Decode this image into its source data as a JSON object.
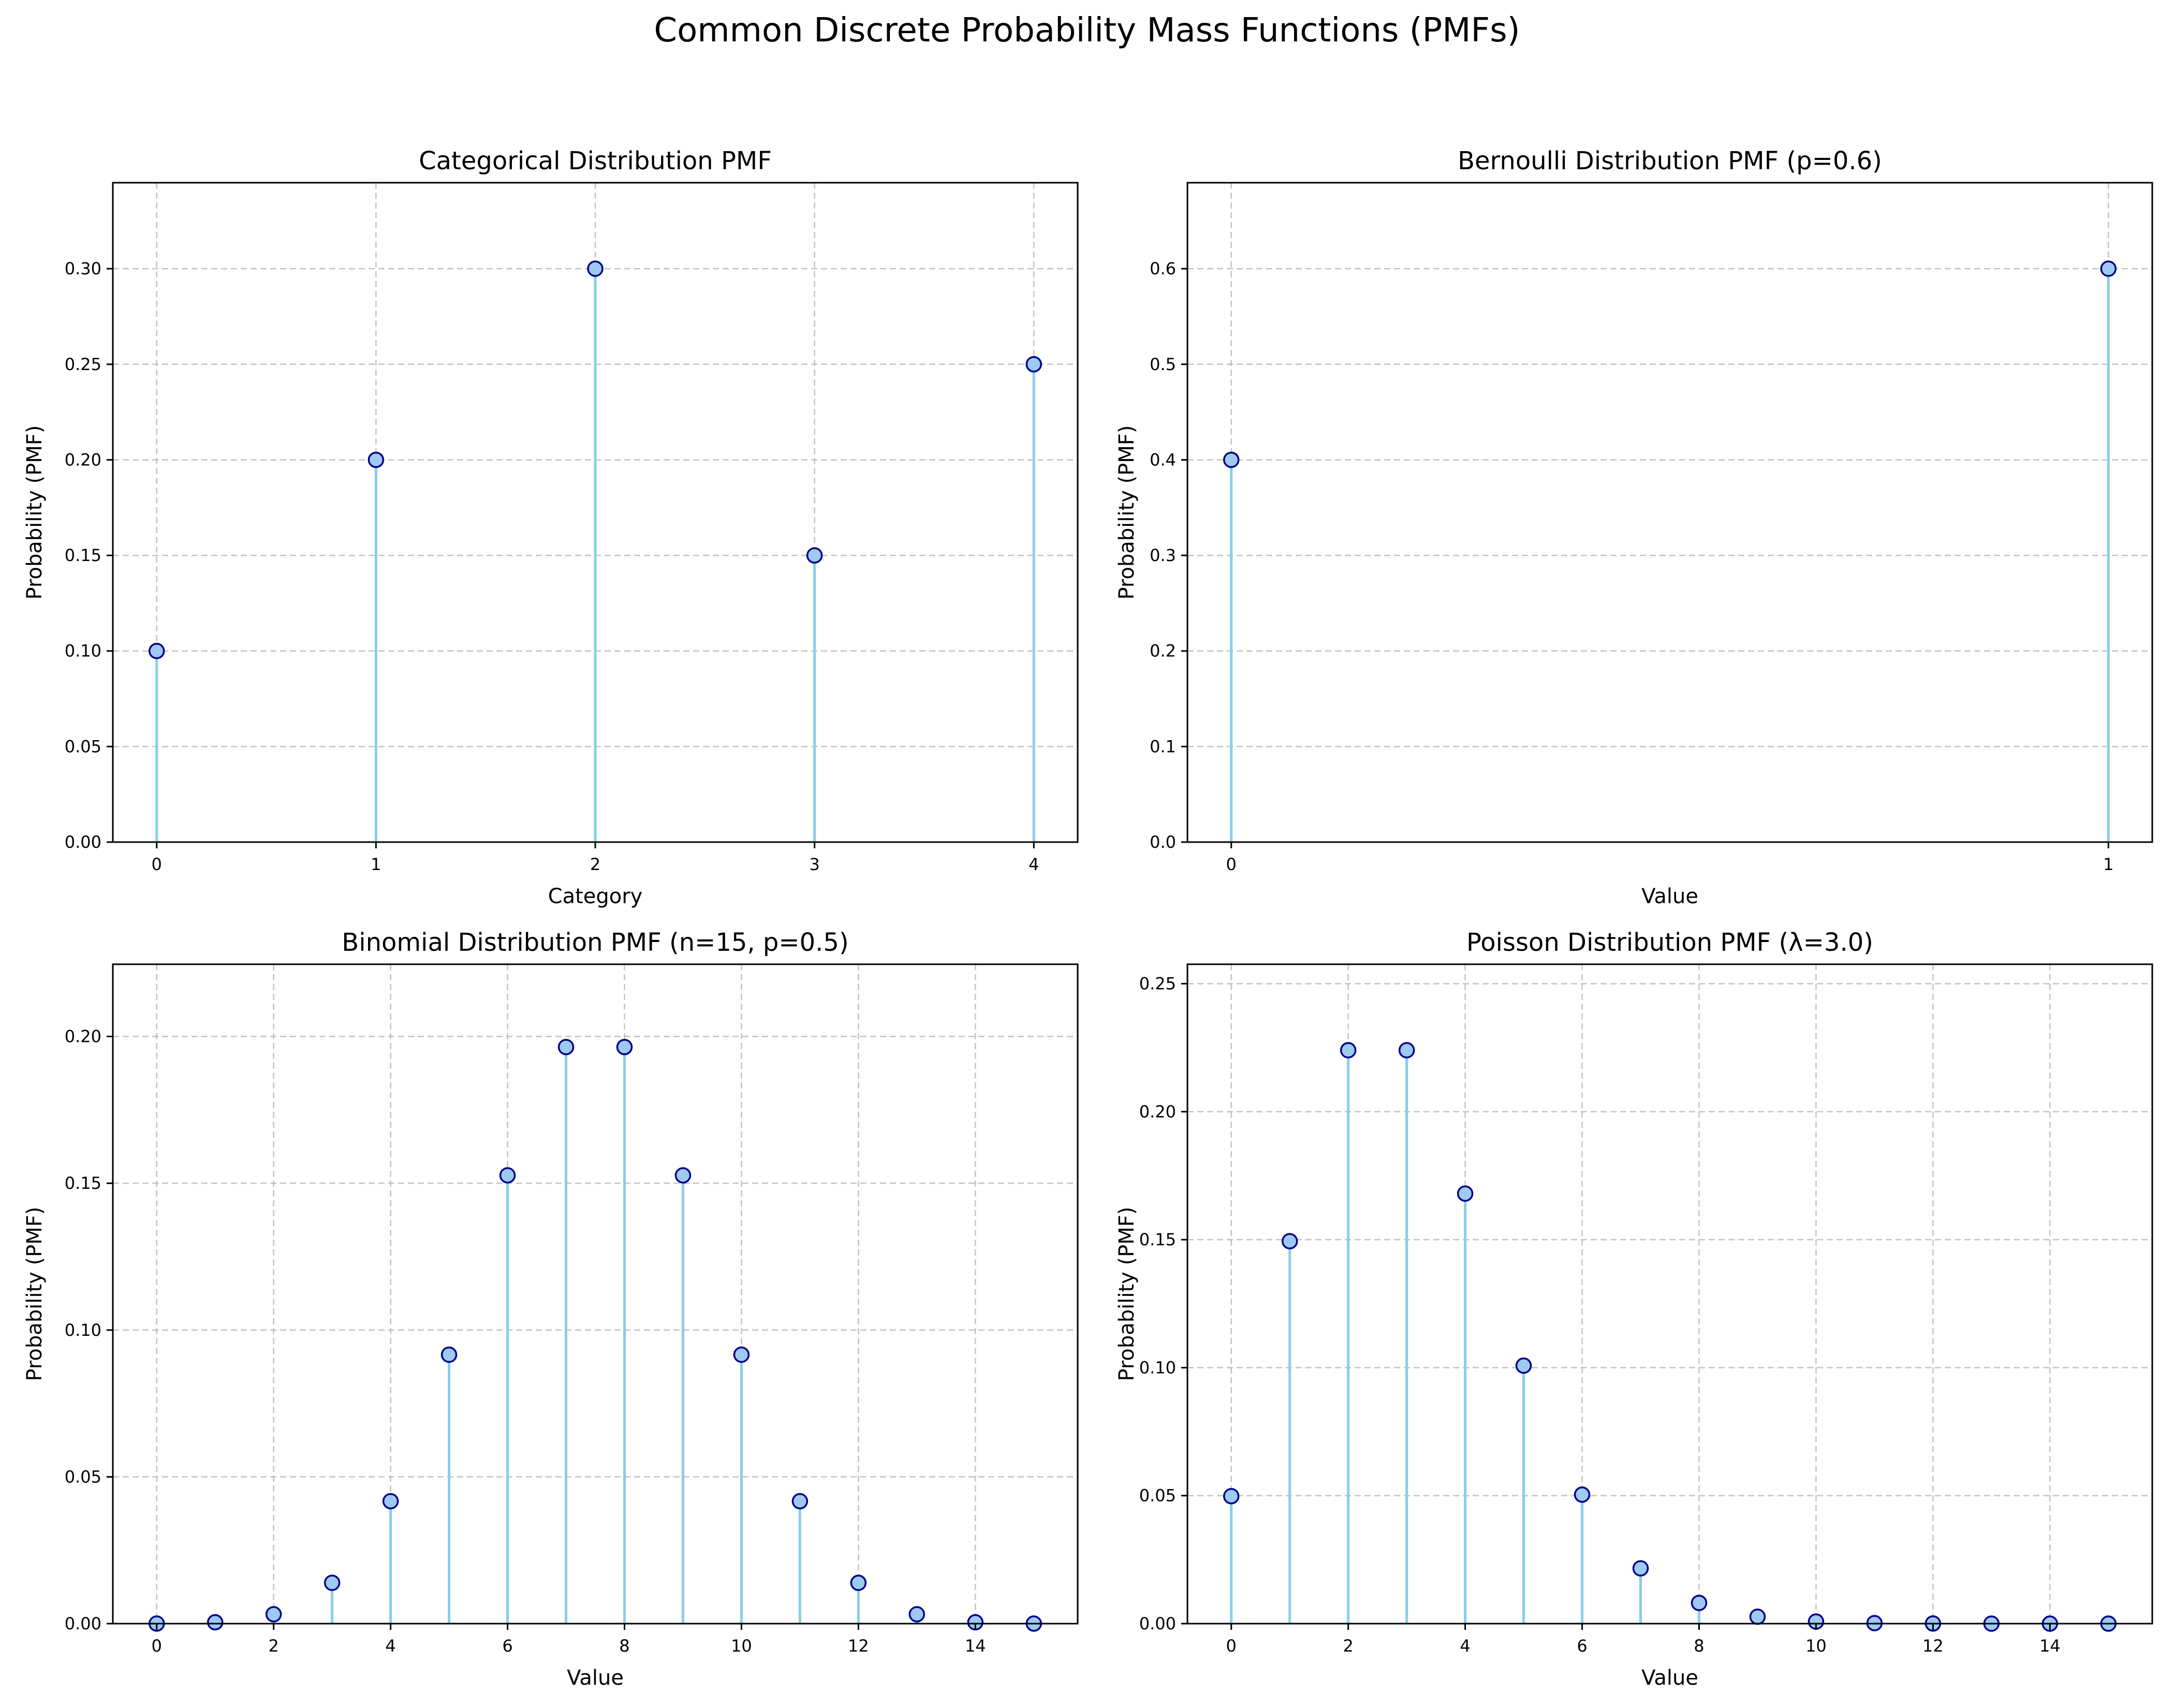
{
  "figure": {
    "title": "Common Discrete Probability Mass Functions (PMFs)"
  },
  "colors": {
    "stem": "#87ceeb",
    "marker_fill": "#9ec9f0",
    "marker_edge": "#00008b"
  },
  "chart_data": [
    {
      "type": "stem",
      "title": "Categorical Distribution PMF",
      "xlabel": "Category",
      "ylabel": "Probability (PMF)",
      "x": [
        0,
        1,
        2,
        3,
        4
      ],
      "y": [
        0.1,
        0.2,
        0.3,
        0.15,
        0.25
      ],
      "xlim": [
        -0.2,
        4.2
      ],
      "ylim": [
        0,
        0.345
      ],
      "xticks": [
        0,
        1,
        2,
        3,
        4
      ],
      "yticks": [
        0.0,
        0.05,
        0.1,
        0.15,
        0.2,
        0.25,
        0.3
      ],
      "ytick_decimals": 2,
      "grid": true
    },
    {
      "type": "stem",
      "title": "Bernoulli Distribution PMF (p=0.6)",
      "xlabel": "Value",
      "ylabel": "Probability (PMF)",
      "x": [
        0,
        1
      ],
      "y": [
        0.4,
        0.6
      ],
      "xlim": [
        -0.05,
        1.05
      ],
      "ylim": [
        0,
        0.69
      ],
      "xticks": [
        0,
        1
      ],
      "yticks": [
        0.0,
        0.1,
        0.2,
        0.3,
        0.4,
        0.5,
        0.6
      ],
      "ytick_decimals": 1,
      "grid": true
    },
    {
      "type": "stem",
      "title": "Binomial Distribution PMF (n=15, p=0.5)",
      "xlabel": "Value",
      "ylabel": "Probability (PMF)",
      "x": [
        0,
        1,
        2,
        3,
        4,
        5,
        6,
        7,
        8,
        9,
        10,
        11,
        12,
        13,
        14,
        15
      ],
      "y": [
        3e-05,
        0.00046,
        0.0032,
        0.0139,
        0.0417,
        0.0916,
        0.1527,
        0.1964,
        0.1964,
        0.1527,
        0.0916,
        0.0417,
        0.0139,
        0.0032,
        0.00046,
        3e-05
      ],
      "xlim": [
        -0.75,
        15.75
      ],
      "ylim": [
        0,
        0.2246
      ],
      "xticks": [
        0,
        2,
        4,
        6,
        8,
        10,
        12,
        14
      ],
      "yticks": [
        0.0,
        0.05,
        0.1,
        0.15,
        0.2
      ],
      "ytick_decimals": 2,
      "grid": true
    },
    {
      "type": "stem",
      "title": "Poisson Distribution PMF (λ=3.0)",
      "xlabel": "Value",
      "ylabel": "Probability (PMF)",
      "x": [
        0,
        1,
        2,
        3,
        4,
        5,
        6,
        7,
        8,
        9,
        10,
        11,
        12,
        13,
        14,
        15
      ],
      "y": [
        0.0498,
        0.1494,
        0.224,
        0.224,
        0.168,
        0.1008,
        0.0504,
        0.0216,
        0.0081,
        0.0027,
        0.0008,
        0.0002,
        6e-05,
        1e-05,
        3e-06,
        6e-07
      ],
      "xlim": [
        -0.75,
        15.75
      ],
      "ylim": [
        0,
        0.2576
      ],
      "xticks": [
        0,
        2,
        4,
        6,
        8,
        10,
        12,
        14
      ],
      "yticks": [
        0.0,
        0.05,
        0.1,
        0.15,
        0.2,
        0.25
      ],
      "ytick_decimals": 2,
      "grid": true
    }
  ]
}
